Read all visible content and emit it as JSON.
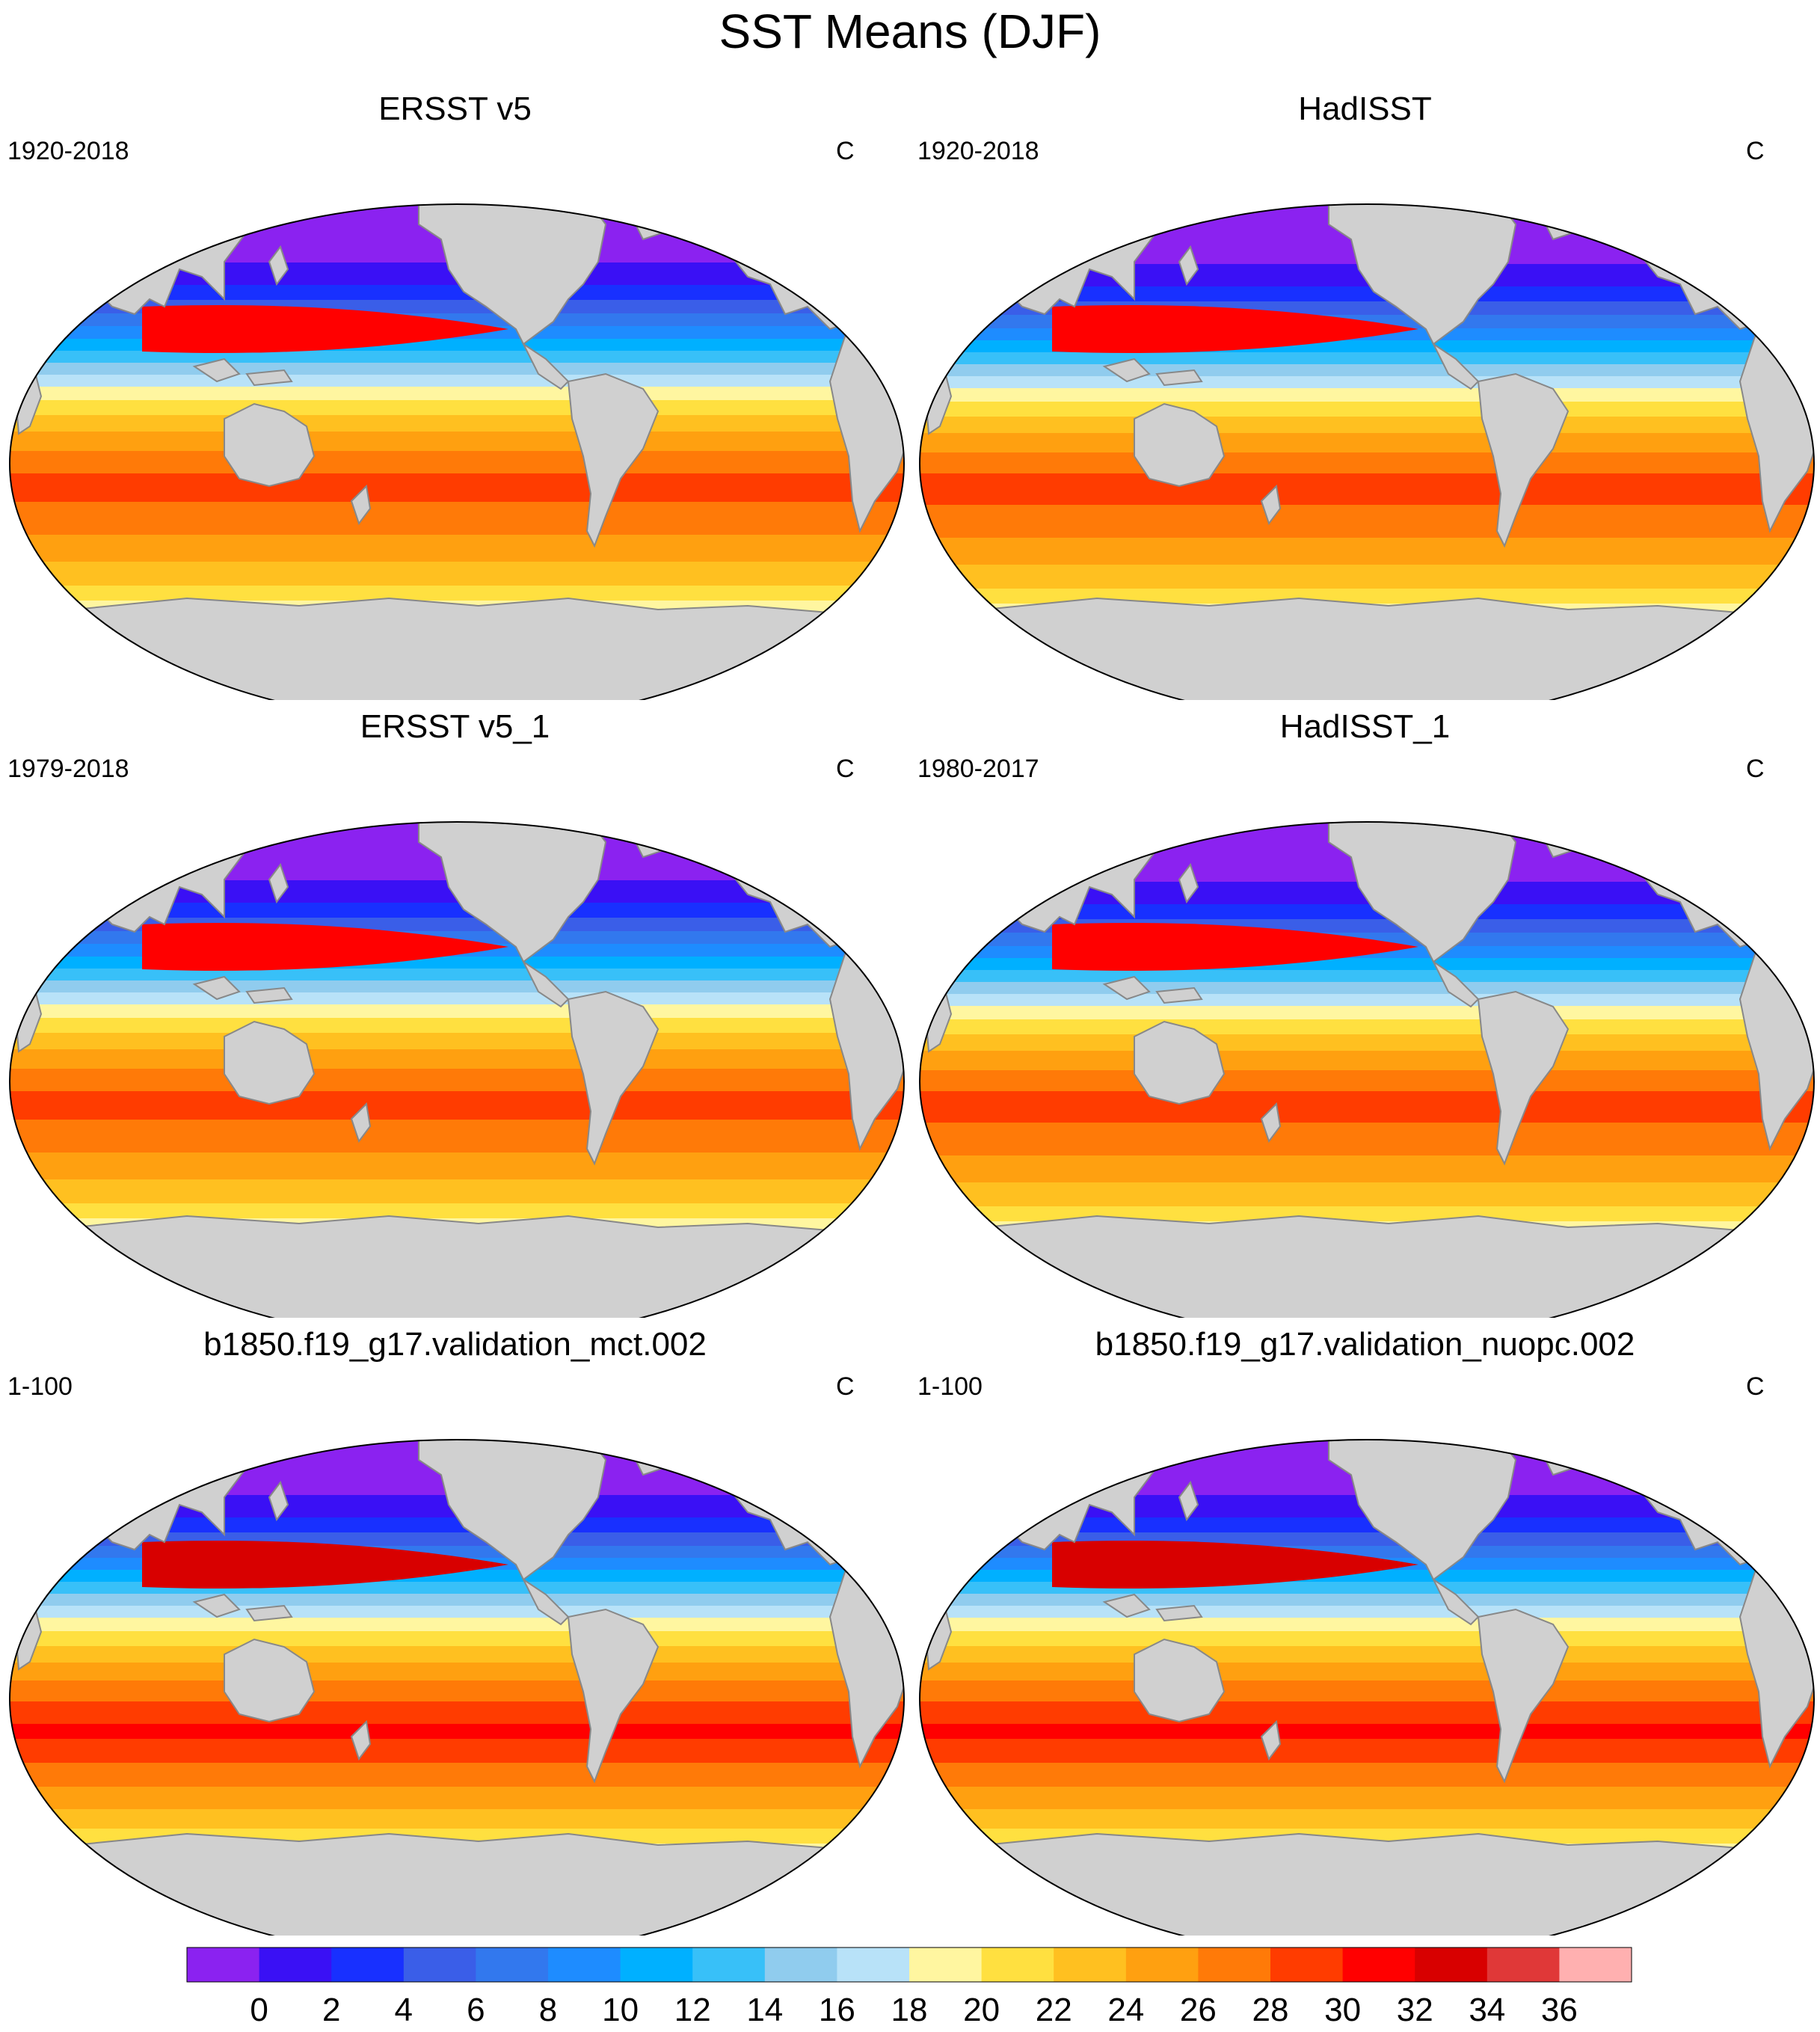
{
  "title": "SST Means (DJF)",
  "panels": [
    {
      "title": "ERSST v5",
      "period": "1920-2018",
      "units": "C"
    },
    {
      "title": "HadISST",
      "period": "1920-2018",
      "units": "C"
    },
    {
      "title": "ERSST v5_1",
      "period": "1979-2018",
      "units": "C"
    },
    {
      "title": "HadISST_1",
      "period": "1980-2017",
      "units": "C"
    },
    {
      "title": "b1850.f19_g17.validation_mct.002",
      "period": "1-100",
      "units": "C"
    },
    {
      "title": "b1850.f19_g17.validation_nuopc.002",
      "period": "1-100",
      "units": "C"
    }
  ],
  "colorbar": {
    "labels": [
      "0",
      "2",
      "4",
      "6",
      "8",
      "10",
      "12",
      "14",
      "16",
      "18",
      "20",
      "22",
      "24",
      "26",
      "28",
      "30",
      "32",
      "34",
      "36"
    ],
    "colors": [
      "#8b22f0",
      "#3a10f5",
      "#1830ff",
      "#3a5ee8",
      "#3278ee",
      "#1e8cff",
      "#00b0ff",
      "#38c0f8",
      "#90ccee",
      "#b8e2f8",
      "#fff6a0",
      "#ffe040",
      "#ffc020",
      "#ffa010",
      "#ff7a08",
      "#ff3c00",
      "#ff0000",
      "#d80000",
      "#e03838",
      "#ffb0b0"
    ]
  },
  "colors": {
    "land": "#d0d0d0",
    "coast": "#888888",
    "background": "#ffffff"
  }
}
